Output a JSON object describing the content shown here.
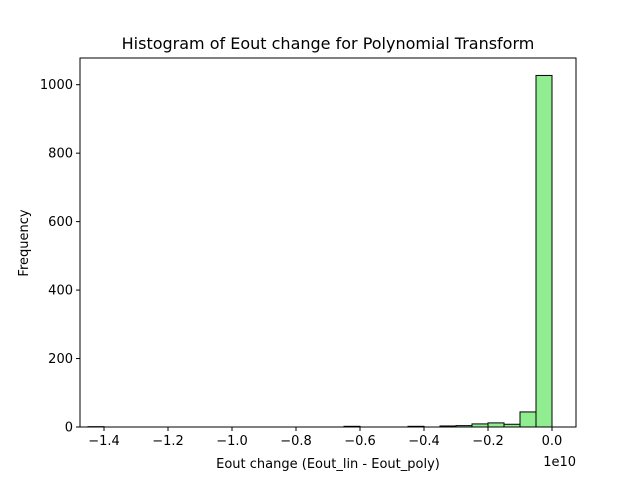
{
  "chart_data": {
    "type": "bar",
    "title": "Histogram of Eout change for Polynomial Transform",
    "xlabel": "Eout change (Eout_lin - Eout_poly)",
    "ylabel": "Frequency",
    "x_scale_label": "1e10",
    "xlim": [
      -1.475,
      0.075
    ],
    "ylim": [
      0,
      1078
    ],
    "x_ticks": [
      {
        "value": -1.4,
        "label": "−1.4"
      },
      {
        "value": -1.2,
        "label": "−1.2"
      },
      {
        "value": -1.0,
        "label": "−1.0"
      },
      {
        "value": -0.8,
        "label": "−0.8"
      },
      {
        "value": -0.6,
        "label": "−0.6"
      },
      {
        "value": -0.4,
        "label": "−0.4"
      },
      {
        "value": -0.2,
        "label": "−0.2"
      },
      {
        "value": 0.0,
        "label": "0.0"
      }
    ],
    "y_ticks": [
      {
        "value": 0,
        "label": "0"
      },
      {
        "value": 200,
        "label": "200"
      },
      {
        "value": 400,
        "label": "400"
      },
      {
        "value": 600,
        "label": "600"
      },
      {
        "value": 800,
        "label": "800"
      },
      {
        "value": 1000,
        "label": "1000"
      }
    ],
    "bins": [
      {
        "x0": -1.45,
        "x1": -1.4,
        "count": 1
      },
      {
        "x0": -1.4,
        "x1": -1.35,
        "count": 0
      },
      {
        "x0": -1.35,
        "x1": -1.3,
        "count": 0
      },
      {
        "x0": -1.3,
        "x1": -1.25,
        "count": 0
      },
      {
        "x0": -1.25,
        "x1": -1.2,
        "count": 0
      },
      {
        "x0": -1.2,
        "x1": -1.15,
        "count": 0
      },
      {
        "x0": -1.15,
        "x1": -1.1,
        "count": 0
      },
      {
        "x0": -1.1,
        "x1": -1.05,
        "count": 0
      },
      {
        "x0": -1.05,
        "x1": -1.0,
        "count": 0
      },
      {
        "x0": -1.0,
        "x1": -0.95,
        "count": 0
      },
      {
        "x0": -0.95,
        "x1": -0.9,
        "count": 0
      },
      {
        "x0": -0.9,
        "x1": -0.85,
        "count": 0
      },
      {
        "x0": -0.85,
        "x1": -0.8,
        "count": 0
      },
      {
        "x0": -0.8,
        "x1": -0.75,
        "count": 0
      },
      {
        "x0": -0.75,
        "x1": -0.7,
        "count": 0
      },
      {
        "x0": -0.7,
        "x1": -0.65,
        "count": 0
      },
      {
        "x0": -0.65,
        "x1": -0.6,
        "count": 2
      },
      {
        "x0": -0.6,
        "x1": -0.55,
        "count": 0
      },
      {
        "x0": -0.55,
        "x1": -0.5,
        "count": 0
      },
      {
        "x0": -0.5,
        "x1": -0.45,
        "count": 0
      },
      {
        "x0": -0.45,
        "x1": -0.4,
        "count": 2
      },
      {
        "x0": -0.4,
        "x1": -0.35,
        "count": 0
      },
      {
        "x0": -0.35,
        "x1": -0.3,
        "count": 3
      },
      {
        "x0": -0.3,
        "x1": -0.25,
        "count": 4
      },
      {
        "x0": -0.25,
        "x1": -0.2,
        "count": 9
      },
      {
        "x0": -0.2,
        "x1": -0.15,
        "count": 12
      },
      {
        "x0": -0.15,
        "x1": -0.1,
        "count": 8
      },
      {
        "x0": -0.1,
        "x1": -0.05,
        "count": 44
      },
      {
        "x0": -0.05,
        "x1": 0.0,
        "count": 1027
      }
    ],
    "bar_color": "#90ee90",
    "edge_color": "#000000",
    "grid": false,
    "legend": "none"
  }
}
